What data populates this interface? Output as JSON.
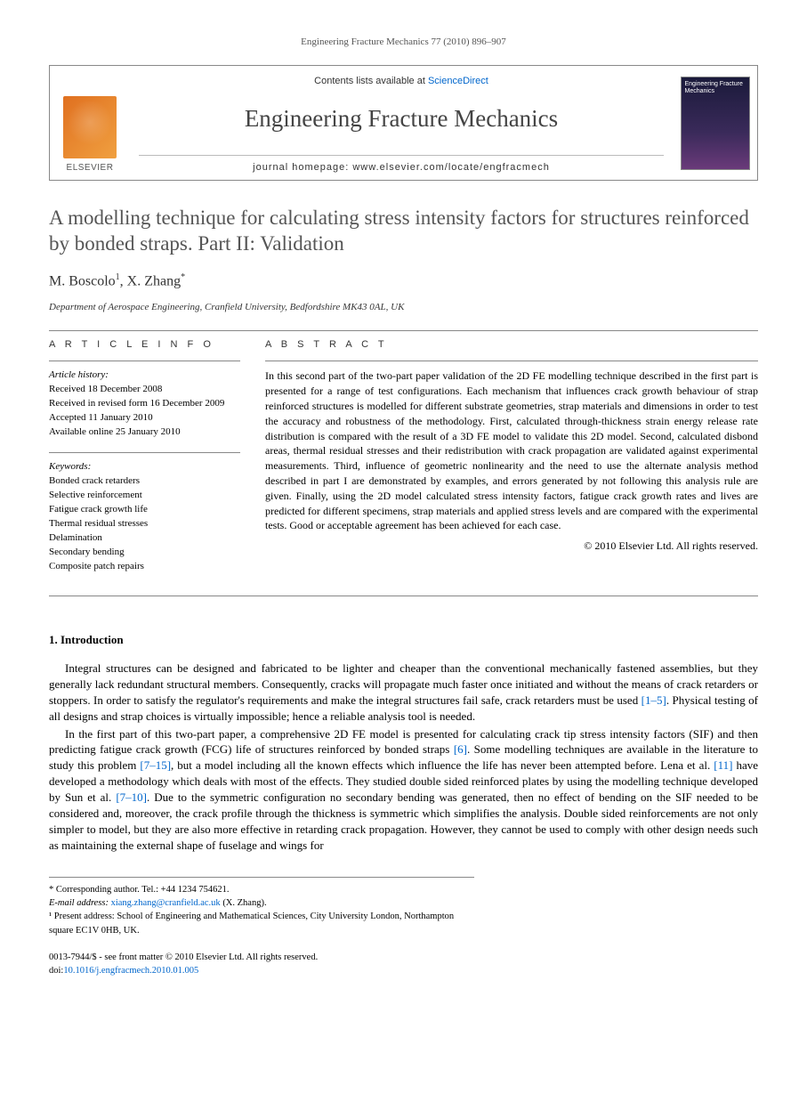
{
  "header": {
    "citation": "Engineering Fracture Mechanics 77 (2010) 896–907"
  },
  "banner": {
    "contents_prefix": "Contents lists available at ",
    "contents_link": "ScienceDirect",
    "journal_name": "Engineering Fracture Mechanics",
    "homepage_label": "journal homepage: www.elsevier.com/locate/engfracmech",
    "publisher_name": "ELSEVIER",
    "cover_title": "Engineering Fracture Mechanics"
  },
  "article": {
    "title": "A modelling technique for calculating stress intensity factors for structures reinforced by bonded straps. Part II: Validation",
    "authors_html": "M. Boscolo <sup>1</sup>, X. Zhang <sup>*</sup>",
    "author1": "M. Boscolo",
    "author1_sup": "1",
    "author2": "X. Zhang",
    "author2_sup": "*",
    "affiliation": "Department of Aerospace Engineering, Cranfield University, Bedfordshire MK43 0AL, UK"
  },
  "info": {
    "label": "A R T I C L E   I N F O",
    "history_heading": "Article history:",
    "history": [
      "Received 18 December 2008",
      "Received in revised form 16 December 2009",
      "Accepted 11 January 2010",
      "Available online 25 January 2010"
    ],
    "keywords_heading": "Keywords:",
    "keywords": [
      "Bonded crack retarders",
      "Selective reinforcement",
      "Fatigue crack growth life",
      "Thermal residual stresses",
      "Delamination",
      "Secondary bending",
      "Composite patch repairs"
    ]
  },
  "abstract": {
    "label": "A B S T R A C T",
    "text": "In this second part of the two-part paper validation of the 2D FE modelling technique described in the first part is presented for a range of test configurations. Each mechanism that influences crack growth behaviour of strap reinforced structures is modelled for different substrate geometries, strap materials and dimensions in order to test the accuracy and robustness of the methodology. First, calculated through-thickness strain energy release rate distribution is compared with the result of a 3D FE model to validate this 2D model. Second, calculated disbond areas, thermal residual stresses and their redistribution with crack propagation are validated against experimental measurements. Third, influence of geometric nonlinearity and the need to use the alternate analysis method described in part I are demonstrated by examples, and errors generated by not following this analysis rule are given. Finally, using the 2D model calculated stress intensity factors, fatigue crack growth rates and lives are predicted for different specimens, strap materials and applied stress levels and are compared with the experimental tests. Good or acceptable agreement has been achieved for each case.",
    "copyright": "© 2010 Elsevier Ltd. All rights reserved."
  },
  "body": {
    "section1_title": "1. Introduction",
    "para1": "Integral structures can be designed and fabricated to be lighter and cheaper than the conventional mechanically fastened assemblies, but they generally lack redundant structural members. Consequently, cracks will propagate much faster once initiated and without the means of crack retarders or stoppers. In order to satisfy the regulator's requirements and make the integral structures fail safe, crack retarders must be used ",
    "para1_ref1": "[1–5]",
    "para1_tail": ". Physical testing of all designs and strap choices is virtually impossible; hence a reliable analysis tool is needed.",
    "para2_a": "In the first part of this two-part paper, a comprehensive 2D FE model is presented for calculating crack tip stress intensity factors (SIF) and then predicting fatigue crack growth (FCG) life of structures reinforced by bonded straps ",
    "para2_ref1": "[6]",
    "para2_b": ". Some modelling techniques are available in the literature to study this problem ",
    "para2_ref2": "[7–15]",
    "para2_c": ", but a model including all the known effects which influence the life has never been attempted before. Lena et al. ",
    "para2_ref3": "[11]",
    "para2_d": " have developed a methodology which deals with most of the effects. They studied double sided reinforced plates by using the modelling technique developed by Sun et al. ",
    "para2_ref4": "[7–10]",
    "para2_e": ". Due to the symmetric configuration no secondary bending was generated, then no effect of bending on the SIF needed to be considered and, moreover, the crack profile through the thickness is symmetric which simplifies the analysis. Double sided reinforcements are not only simpler to model, but they are also more effective in retarding crack propagation. However, they cannot be used to comply with other design needs such as maintaining the external shape of fuselage and wings for"
  },
  "footnotes": {
    "corr_label": "* Corresponding author. Tel.: +44 1234 754621.",
    "email_label": "E-mail address: ",
    "email": "xiang.zhang@cranfield.ac.uk",
    "email_suffix": " (X. Zhang).",
    "note1": "¹ Present address: School of Engineering and Mathematical Sciences, City University London, Northampton square EC1V 0HB, UK."
  },
  "footer": {
    "issn_line": "0013-7944/$ - see front matter © 2010 Elsevier Ltd. All rights reserved.",
    "doi_label": "doi:",
    "doi": "10.1016/j.engfracmech.2010.01.005"
  },
  "colors": {
    "link": "#0066cc",
    "title_gray": "#555555",
    "rule": "#888888"
  }
}
